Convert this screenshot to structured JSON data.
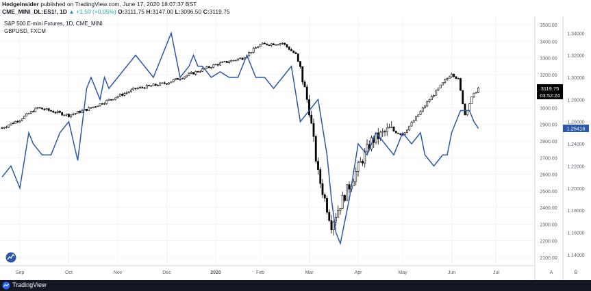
{
  "header": {
    "author": "HedgeInsider",
    "published": "published on TradingView.com, June 17, 2020 18:07:37 BST",
    "symbol": "CME_MINI_DL:ES1!, 1D",
    "change": "▲ +1.50 (+0.05%)",
    "ohlc": [
      {
        "label": "O:",
        "value": "3111.75"
      },
      {
        "label": "H:",
        "value": "3147.00"
      },
      {
        "label": "L:",
        "value": "3096.50"
      },
      {
        "label": "C:",
        "value": "3119.75"
      }
    ]
  },
  "legend": {
    "main": "S&P 500 E-mini Futures, 1D, CME_MINI",
    "overlay": "GBPUSD, FXCM"
  },
  "colors": {
    "overlay_line": "#2a57a6",
    "candle_up": "#ffffff",
    "candle_down": "#000000",
    "grid": "#f0f3fa",
    "axis_text": "#5d606b",
    "footer_bg": "#131722"
  },
  "tags": {
    "price": "3119.75",
    "countdown": "03:52:24",
    "gbp": "1.25416"
  },
  "scale_buttons": [
    "A",
    "B"
  ],
  "footer": {
    "brand": "TradingView"
  },
  "chart_data": {
    "type": "candlestick",
    "x_ticks": [
      "Sep",
      "Oct",
      "Nov",
      "Dec",
      "2020",
      "Feb",
      "Mar",
      "Apr",
      "May",
      "Jun",
      "Jul"
    ],
    "x_tick_bars": [
      8,
      30,
      52,
      74,
      96,
      116,
      138,
      160,
      180,
      202,
      222
    ],
    "left_axis": {
      "series": "S&P 500 E-mini Futures",
      "range": [
        2050,
        3550
      ],
      "ticks": [
        3500,
        3400,
        3300,
        3200,
        3100,
        3000,
        2900,
        2800,
        2700,
        2600,
        2500,
        2400,
        2300,
        2200,
        2100
      ]
    },
    "right_axis": {
      "series": "GBPUSD",
      "range": [
        1.13,
        1.355
      ],
      "ticks": [
        1.34,
        1.32,
        1.3,
        1.28,
        1.26,
        1.24,
        1.22,
        1.2,
        1.18,
        1.16,
        1.14
      ]
    },
    "close_bars": [
      0,
      8,
      16,
      30,
      40,
      52,
      60,
      74,
      84,
      96,
      108,
      116,
      126,
      132,
      134,
      138,
      142,
      148,
      152,
      160,
      166,
      174,
      180,
      186,
      192,
      202,
      205,
      208,
      211,
      214
    ],
    "close_values": [
      2880,
      2930,
      3000,
      2955,
      3000,
      3070,
      3115,
      3150,
      3200,
      3260,
      3300,
      3380,
      3390,
      3320,
      3230,
      2990,
      2600,
      2300,
      2420,
      2640,
      2800,
      2870,
      2840,
      2940,
      3050,
      3210,
      3170,
      2960,
      3060,
      3120
    ],
    "series": [
      {
        "name": "GBPUSD, FXCM",
        "bars": [
          0,
          4,
          8,
          12,
          14,
          18,
          22,
          26,
          30,
          34,
          38,
          40,
          44,
          46,
          48,
          52,
          56,
          60,
          64,
          68,
          72,
          76,
          80,
          84,
          86,
          88,
          90,
          94,
          98,
          102,
          106,
          110,
          114,
          118,
          122,
          126,
          130,
          134,
          138,
          142,
          146,
          148,
          150,
          152,
          156,
          160,
          164,
          168,
          172,
          176,
          180,
          184,
          188,
          190,
          194,
          198,
          200,
          202,
          206,
          210,
          212,
          214
        ],
        "values": [
          1.21,
          1.22,
          1.2,
          1.25,
          1.24,
          1.23,
          1.23,
          1.25,
          1.26,
          1.225,
          1.29,
          1.3,
          1.28,
          1.3,
          1.29,
          1.3,
          1.31,
          1.32,
          1.31,
          1.3,
          1.32,
          1.34,
          1.3,
          1.31,
          1.32,
          1.31,
          1.31,
          1.3,
          1.305,
          1.3,
          1.3,
          1.32,
          1.3,
          1.3,
          1.29,
          1.3,
          1.31,
          1.26,
          1.27,
          1.28,
          1.23,
          1.19,
          1.16,
          1.15,
          1.19,
          1.24,
          1.23,
          1.25,
          1.24,
          1.23,
          1.25,
          1.24,
          1.25,
          1.23,
          1.22,
          1.23,
          1.23,
          1.25,
          1.27,
          1.27,
          1.26,
          1.254
        ]
      }
    ]
  }
}
